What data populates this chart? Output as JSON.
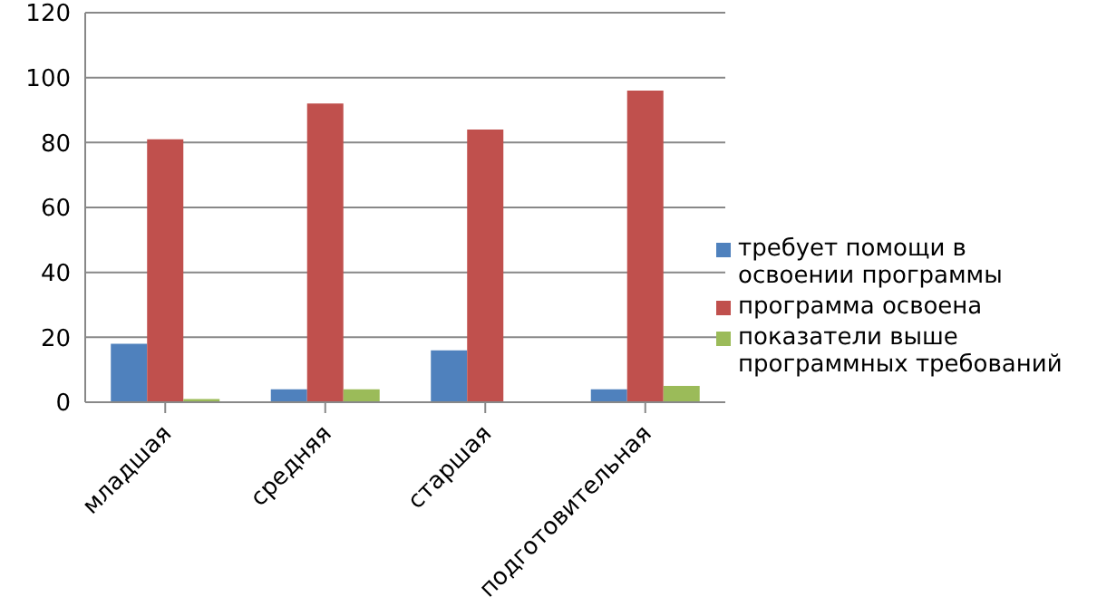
{
  "chart_data": {
    "type": "bar",
    "categories": [
      "младшая",
      "средняя",
      "старшая",
      "подготовительная"
    ],
    "series": [
      {
        "name": "требует помощи в освоении программы",
        "color": "#4f81bd",
        "values": [
          18,
          4,
          16,
          4
        ]
      },
      {
        "name": "программа освоена",
        "color": "#c0504d",
        "values": [
          81,
          92,
          84,
          96
        ]
      },
      {
        "name": "показатели выше программных требований",
        "color": "#9bbb59",
        "values": [
          1,
          4,
          0,
          5
        ]
      }
    ],
    "ylim": [
      0,
      120
    ],
    "yticks": [
      0,
      20,
      40,
      60,
      80,
      100,
      120
    ],
    "grid": "y",
    "legend": "right"
  }
}
